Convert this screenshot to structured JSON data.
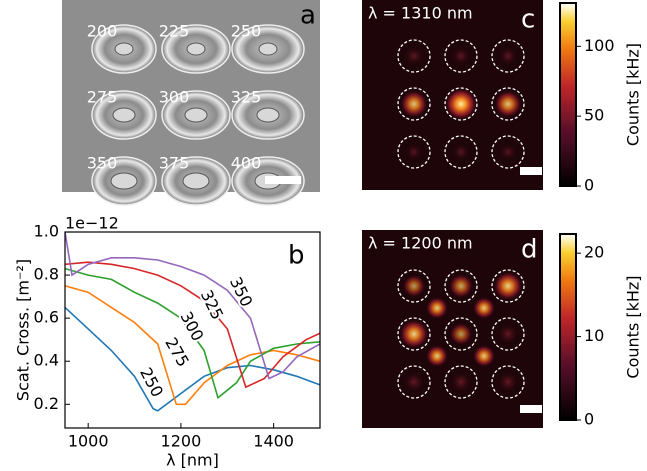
{
  "chart_data": [
    {
      "type": "image",
      "panel": "a",
      "annotations": [
        "200",
        "225",
        "250",
        "275",
        "300",
        "325",
        "350",
        "375",
        "400"
      ]
    },
    {
      "type": "line",
      "panel": "b",
      "offset_text": "1e−12",
      "xlabel": "λ [nm]",
      "ylabel": "Scat. Cross. [m⁻²]",
      "xlim": [
        950,
        1500
      ],
      "ylim": [
        0.09,
        1.0
      ],
      "xticks": [
        1000,
        1200,
        1400
      ],
      "yticks": [
        0.2,
        0.4,
        0.6,
        0.8,
        {
          "value": 1,
          "label": "1.0"
        }
      ],
      "series": [
        {
          "name": "250",
          "color": "#1f77b4",
          "x": [
            950,
            1000,
            1050,
            1100,
            1140,
            1150,
            1200,
            1250,
            1300,
            1350,
            1400,
            1450,
            1500
          ],
          "values": [
            0.65,
            0.55,
            0.45,
            0.33,
            0.18,
            0.17,
            0.25,
            0.33,
            0.37,
            0.38,
            0.36,
            0.33,
            0.29
          ]
        },
        {
          "name": "275",
          "color": "#ff7f0e",
          "x": [
            950,
            1000,
            1050,
            1100,
            1150,
            1190,
            1210,
            1250,
            1300,
            1350,
            1400,
            1450,
            1500
          ],
          "values": [
            0.75,
            0.72,
            0.65,
            0.58,
            0.48,
            0.2,
            0.2,
            0.3,
            0.38,
            0.43,
            0.45,
            0.43,
            0.4
          ]
        },
        {
          "name": "300",
          "color": "#2ca02c",
          "x": [
            950,
            1000,
            1050,
            1100,
            1150,
            1200,
            1250,
            1280,
            1320,
            1350,
            1400,
            1450,
            1500
          ],
          "values": [
            0.83,
            0.8,
            0.78,
            0.72,
            0.67,
            0.6,
            0.45,
            0.23,
            0.3,
            0.4,
            0.46,
            0.48,
            0.49
          ]
        },
        {
          "name": "325",
          "color": "#d62728",
          "x": [
            950,
            1000,
            1050,
            1100,
            1150,
            1200,
            1250,
            1300,
            1340,
            1380,
            1420,
            1470,
            1500
          ],
          "values": [
            0.85,
            0.86,
            0.85,
            0.83,
            0.8,
            0.75,
            0.68,
            0.55,
            0.28,
            0.32,
            0.42,
            0.5,
            0.53
          ]
        },
        {
          "name": "350",
          "color": "#9467bd",
          "x": [
            950,
            965,
            1000,
            1050,
            1100,
            1150,
            1200,
            1250,
            1300,
            1350,
            1390,
            1420,
            1450,
            1500
          ],
          "values": [
            1.0,
            0.8,
            0.85,
            0.88,
            0.88,
            0.87,
            0.84,
            0.8,
            0.73,
            0.6,
            0.32,
            0.35,
            0.42,
            0.48
          ]
        }
      ]
    },
    {
      "type": "heatmap",
      "panel": "c",
      "title": "λ = 1310 nm",
      "colorbar_label": "Counts [kHz]",
      "clim": [
        0,
        131
      ],
      "cticks": [
        0,
        50,
        100
      ]
    },
    {
      "type": "heatmap",
      "panel": "d",
      "title": "λ = 1200 nm",
      "colorbar_label": "Counts [kHz]",
      "clim": [
        0,
        22.3
      ],
      "cticks": [
        0,
        10,
        20
      ]
    }
  ]
}
